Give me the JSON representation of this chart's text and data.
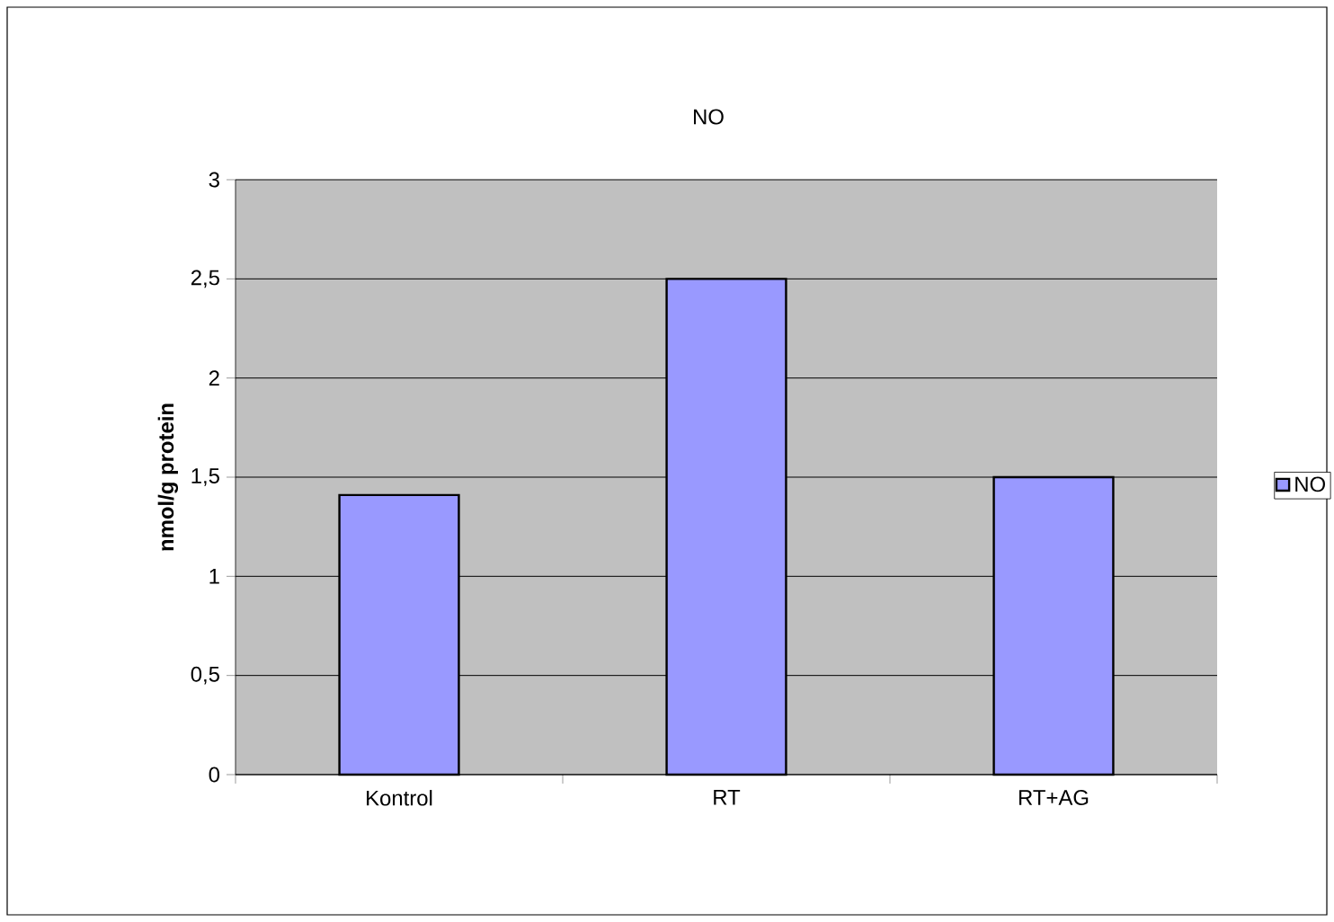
{
  "chart_data": {
    "type": "bar",
    "title": "NO",
    "ylabel": "nmol/g protein",
    "categories": [
      "Kontrol",
      "RT",
      "RT+AG"
    ],
    "series": [
      {
        "name": "NO",
        "color": "#9999ff",
        "values": [
          1.41,
          2.5,
          1.5
        ]
      }
    ],
    "ylim": [
      0,
      3
    ],
    "yticks": [
      0,
      {
        "value": 0.5,
        "label": "0,5"
      },
      1,
      {
        "value": 1.5,
        "label": "1,5"
      },
      2,
      {
        "value": 2.5,
        "label": "2,5"
      },
      3
    ],
    "grid": "y",
    "legend": "right"
  }
}
